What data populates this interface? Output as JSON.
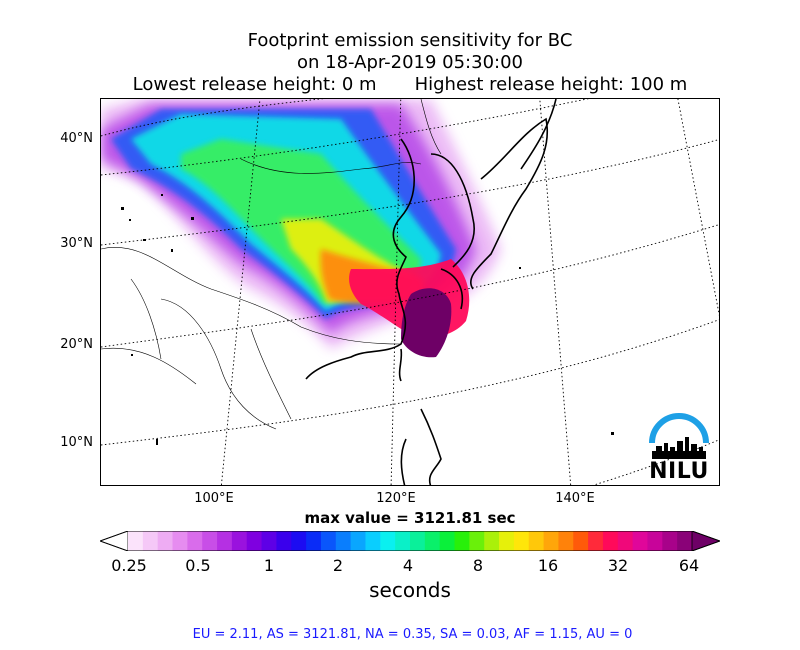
{
  "title": {
    "line1": "Footprint emission sensitivity for BC",
    "line2": "on 18-Apr-2019 05:30:00",
    "lowest": "Lowest release height: 0 m",
    "highest": "Highest release height: 100 m"
  },
  "map": {
    "lat_labels": [
      "40°N",
      "30°N",
      "20°N",
      "10°N"
    ],
    "lon_labels": [
      "100°E",
      "120°E",
      "140°E"
    ],
    "logo_text": "NILU"
  },
  "max_value": "max value = 3121.81 sec",
  "colorbar": {
    "ticks": [
      "0.25",
      "0.5",
      "1",
      "2",
      "4",
      "8",
      "16",
      "32",
      "64"
    ],
    "label": "seconds",
    "colors": [
      "#ffffff",
      "#fbe3fb",
      "#f5c8f7",
      "#eeacf3",
      "#e68cf0",
      "#d96ceb",
      "#c84ee7",
      "#b530e3",
      "#9a12de",
      "#7f00e0",
      "#5e00e6",
      "#3a00ec",
      "#1c0cf2",
      "#0a2cf7",
      "#0a56fb",
      "#0a7efd",
      "#0aa6fe",
      "#0acefe",
      "#0af0f0",
      "#0af0c8",
      "#0af09a",
      "#0af06a",
      "#0af03a",
      "#28f00a",
      "#6af00a",
      "#aaf00a",
      "#e6f00a",
      "#ffe60a",
      "#ffc80a",
      "#ffa60a",
      "#ff820a",
      "#ff5a0a",
      "#ff2a3a",
      "#ff0a5a",
      "#f0087a",
      "#e0069a",
      "#c8049a",
      "#a8028a",
      "#8a0278",
      "#6e0066"
    ]
  },
  "stats": "EU = 2.11,  AS = 3121.81,  NA = 0.35,  SA = 0.03,  AF = 1.15,  AU = 0"
}
